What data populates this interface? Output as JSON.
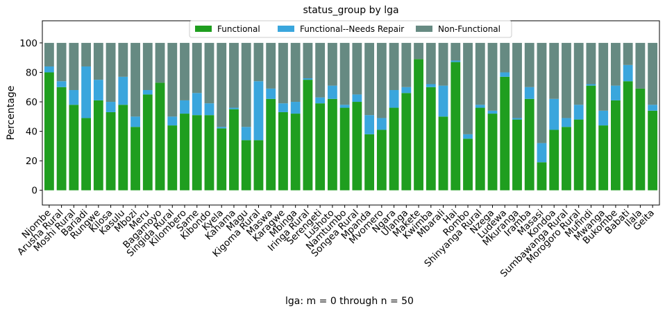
{
  "chart_data": {
    "type": "bar",
    "stacked": true,
    "normalized": true,
    "title": "status_group by lga",
    "xlabel": "lga: m = 0 through n = 50",
    "ylabel": "Percentage",
    "ylim": [
      -10,
      115
    ],
    "yticks": [
      0,
      20,
      40,
      60,
      80,
      100
    ],
    "grid": false,
    "legend_position": "top-center",
    "categories": [
      "Njombe",
      "Arusha Rural",
      "Moshi Rural",
      "Bariadi",
      "Rungwe",
      "Kilosa",
      "Kasulu",
      "Mbozi",
      "Meru",
      "Bagamoyo",
      "Singida Rural",
      "Kilombero",
      "Same",
      "Kibondo",
      "Kyela",
      "Kahama",
      "Magu",
      "Kigoma Rural",
      "Maswa",
      "Karagwe",
      "Mbinga",
      "Iringa Rural",
      "Serengeti",
      "Lushoto",
      "Namtumbo",
      "Songea Rural",
      "Mpanda",
      "Mvomero",
      "Ngara",
      "Ulanga",
      "Makete",
      "Kwimba",
      "Mbarali",
      "Hai",
      "Rombo",
      "Shinyanga Rural",
      "Nzega",
      "Ludewa",
      "Mkuranga",
      "Iramba",
      "Masasi",
      "Kondoa",
      "Sumbawanga Rural",
      "Morogoro Rural",
      "Mufindi",
      "Mwanga",
      "Bukombe",
      "Babati",
      "Ilala",
      "Geita"
    ],
    "series": [
      {
        "name": "Functional",
        "color": "#1f9e1f",
        "values": [
          80,
          70,
          58,
          49,
          61,
          53,
          58,
          43,
          65,
          73,
          44,
          52,
          51,
          51,
          42,
          55,
          34,
          34,
          62,
          53,
          52,
          75,
          59,
          62,
          56,
          60,
          38,
          41,
          56,
          66,
          89,
          70,
          50,
          87,
          35,
          56,
          52,
          77,
          48,
          62,
          19,
          41,
          43,
          48,
          71,
          44,
          61,
          74,
          69,
          54
        ]
      },
      {
        "name": "Functional--Needs Repair",
        "color": "#3aa6dd",
        "values": [
          4,
          4,
          10,
          35,
          14,
          7,
          19,
          7,
          3,
          0,
          6,
          9,
          15,
          8,
          1,
          1,
          9,
          40,
          7,
          6,
          8,
          1,
          4,
          9,
          2,
          5,
          13,
          8,
          12,
          4,
          0,
          2,
          21,
          1,
          3,
          2,
          2,
          3,
          1,
          8,
          13,
          21,
          6,
          10,
          1,
          10,
          10,
          11,
          0,
          4
        ]
      },
      {
        "name": "Non-Functional",
        "color": "#668a82",
        "values": [
          16,
          26,
          32,
          16,
          25,
          40,
          23,
          50,
          32,
          27,
          50,
          39,
          34,
          41,
          57,
          44,
          57,
          26,
          31,
          41,
          40,
          24,
          37,
          29,
          42,
          35,
          49,
          51,
          32,
          30,
          11,
          28,
          29,
          12,
          62,
          42,
          46,
          20,
          51,
          30,
          68,
          38,
          51,
          42,
          28,
          46,
          29,
          15,
          31,
          42
        ]
      }
    ]
  }
}
